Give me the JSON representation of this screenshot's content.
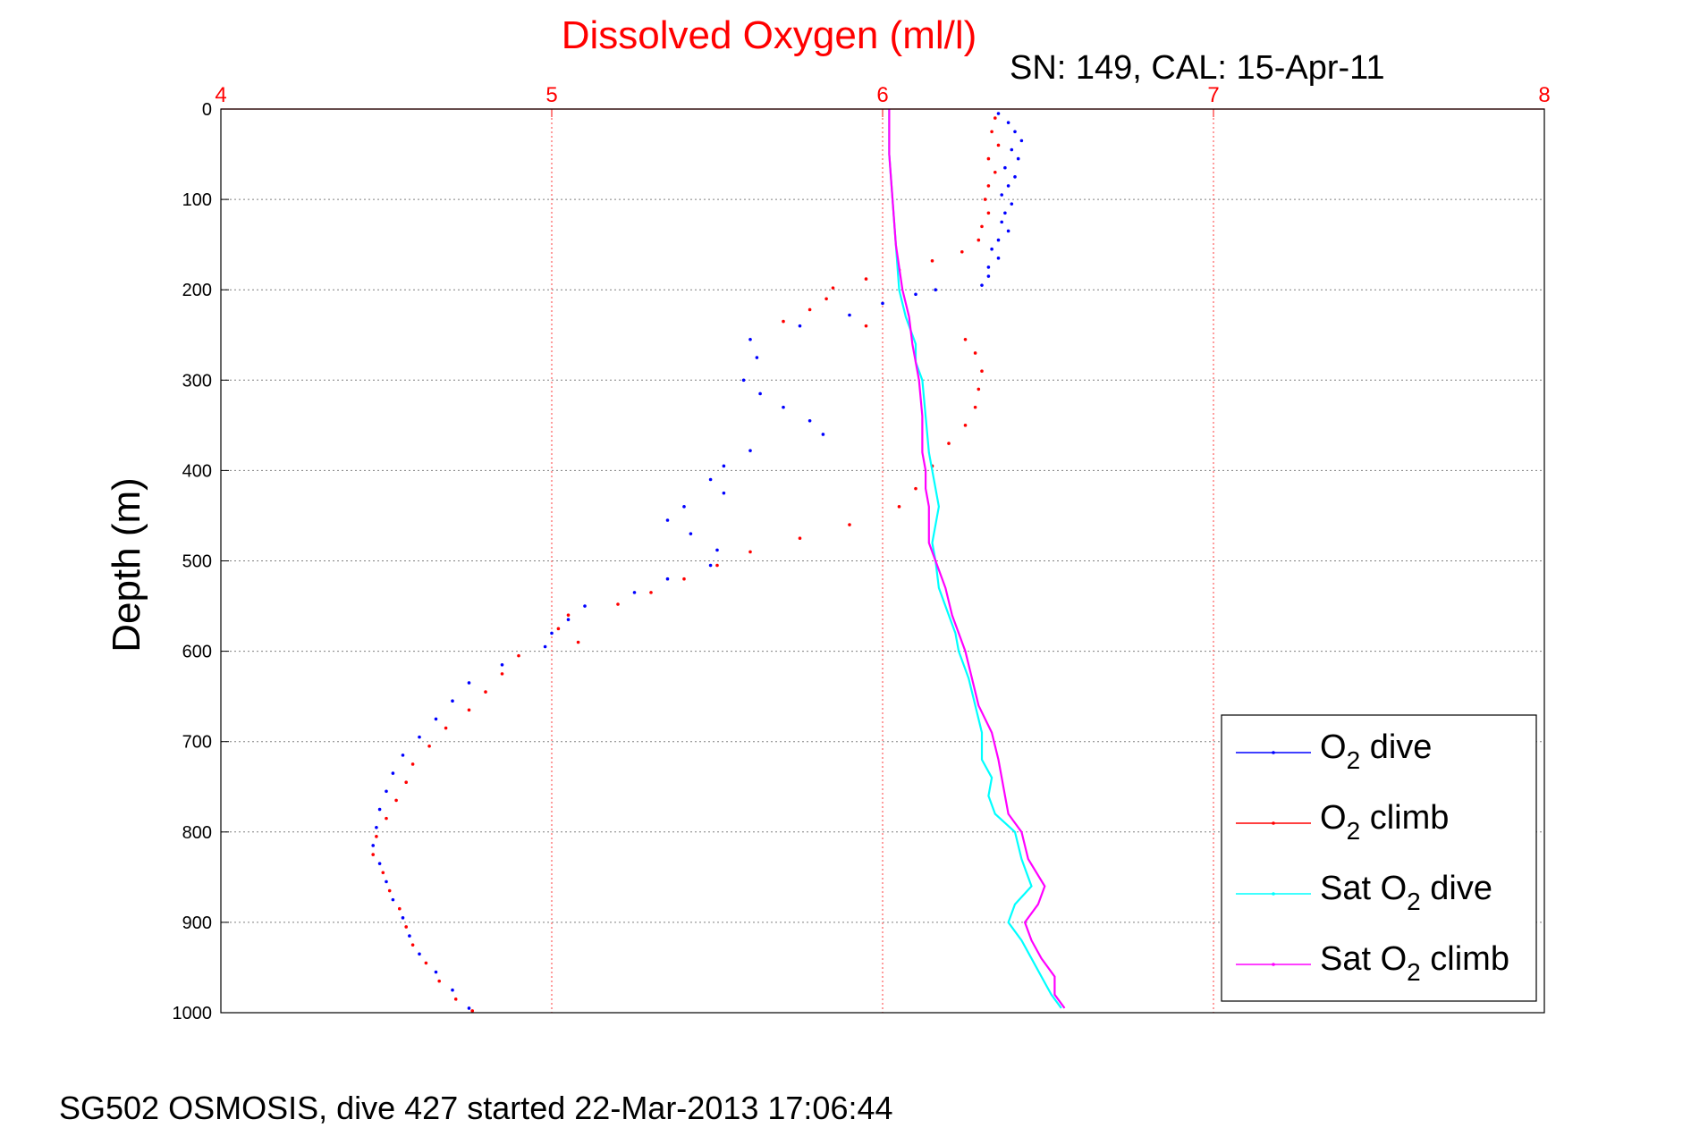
{
  "chart_data": {
    "type": "line",
    "title": "Dissolved Oxygen (ml/l)",
    "subtitle": "SN: 149, CAL: 15-Apr-11",
    "ylabel": "Depth (m)",
    "xlabel": "",
    "footer": "SG502 OSMOSIS, dive 427 started 22-Mar-2013 17:06:44",
    "xlim": [
      4,
      8
    ],
    "ylim": [
      0,
      1000
    ],
    "y_reversed": true,
    "x_axis_position": "top",
    "x_ticks": [
      "4",
      "5",
      "6",
      "7",
      "8"
    ],
    "y_ticks": [
      "0",
      "100",
      "200",
      "300",
      "400",
      "500",
      "600",
      "700",
      "800",
      "900",
      "1000"
    ],
    "grid": true,
    "legend_position": "bottom-right",
    "series": [
      {
        "name": "O2 dive",
        "legend_base": "O",
        "legend_sub": "2",
        "legend_rest": " dive",
        "color": "#0000ff",
        "style": "points",
        "points": [
          [
            6.35,
            5
          ],
          [
            6.38,
            15
          ],
          [
            6.4,
            25
          ],
          [
            6.42,
            35
          ],
          [
            6.39,
            45
          ],
          [
            6.41,
            55
          ],
          [
            6.37,
            65
          ],
          [
            6.4,
            75
          ],
          [
            6.38,
            85
          ],
          [
            6.36,
            95
          ],
          [
            6.39,
            105
          ],
          [
            6.37,
            115
          ],
          [
            6.36,
            125
          ],
          [
            6.38,
            135
          ],
          [
            6.35,
            145
          ],
          [
            6.33,
            155
          ],
          [
            6.35,
            165
          ],
          [
            6.32,
            175
          ],
          [
            6.32,
            185
          ],
          [
            6.3,
            195
          ],
          [
            6.16,
            200
          ],
          [
            6.1,
            205
          ],
          [
            6.0,
            215
          ],
          [
            5.9,
            228
          ],
          [
            5.75,
            240
          ],
          [
            5.6,
            255
          ],
          [
            5.62,
            275
          ],
          [
            5.58,
            300
          ],
          [
            5.63,
            315
          ],
          [
            5.7,
            330
          ],
          [
            5.78,
            345
          ],
          [
            5.82,
            360
          ],
          [
            5.6,
            378
          ],
          [
            5.52,
            395
          ],
          [
            5.48,
            410
          ],
          [
            5.52,
            425
          ],
          [
            5.4,
            440
          ],
          [
            5.35,
            455
          ],
          [
            5.42,
            470
          ],
          [
            5.5,
            488
          ],
          [
            5.48,
            505
          ],
          [
            5.35,
            520
          ],
          [
            5.25,
            535
          ],
          [
            5.1,
            550
          ],
          [
            5.05,
            565
          ],
          [
            5.0,
            580
          ],
          [
            4.98,
            595
          ],
          [
            4.85,
            615
          ],
          [
            4.75,
            635
          ],
          [
            4.7,
            655
          ],
          [
            4.65,
            675
          ],
          [
            4.6,
            695
          ],
          [
            4.55,
            715
          ],
          [
            4.52,
            735
          ],
          [
            4.5,
            755
          ],
          [
            4.48,
            775
          ],
          [
            4.47,
            795
          ],
          [
            4.46,
            815
          ],
          [
            4.48,
            835
          ],
          [
            4.5,
            855
          ],
          [
            4.52,
            875
          ],
          [
            4.55,
            895
          ],
          [
            4.57,
            915
          ],
          [
            4.6,
            935
          ],
          [
            4.65,
            955
          ],
          [
            4.7,
            975
          ],
          [
            4.75,
            995
          ]
        ]
      },
      {
        "name": "O2 climb",
        "legend_base": "O",
        "legend_sub": "2",
        "legend_rest": " climb",
        "color": "#ff0000",
        "style": "points",
        "points": [
          [
            6.34,
            10
          ],
          [
            6.33,
            25
          ],
          [
            6.35,
            40
          ],
          [
            6.32,
            55
          ],
          [
            6.34,
            70
          ],
          [
            6.32,
            85
          ],
          [
            6.31,
            100
          ],
          [
            6.32,
            115
          ],
          [
            6.3,
            130
          ],
          [
            6.29,
            145
          ],
          [
            6.24,
            158
          ],
          [
            6.15,
            168
          ],
          [
            6.05,
            178
          ],
          [
            5.95,
            188
          ],
          [
            5.85,
            198
          ],
          [
            5.83,
            210
          ],
          [
            5.78,
            222
          ],
          [
            5.7,
            235
          ],
          [
            5.95,
            240
          ],
          [
            6.25,
            255
          ],
          [
            6.28,
            270
          ],
          [
            6.3,
            290
          ],
          [
            6.29,
            310
          ],
          [
            6.28,
            330
          ],
          [
            6.25,
            350
          ],
          [
            6.2,
            370
          ],
          [
            6.15,
            395
          ],
          [
            6.1,
            420
          ],
          [
            6.05,
            440
          ],
          [
            5.9,
            460
          ],
          [
            5.75,
            475
          ],
          [
            5.6,
            490
          ],
          [
            5.5,
            505
          ],
          [
            5.4,
            520
          ],
          [
            5.3,
            535
          ],
          [
            5.2,
            548
          ],
          [
            5.05,
            560
          ],
          [
            5.02,
            575
          ],
          [
            5.08,
            590
          ],
          [
            4.9,
            605
          ],
          [
            4.85,
            625
          ],
          [
            4.8,
            645
          ],
          [
            4.75,
            665
          ],
          [
            4.68,
            685
          ],
          [
            4.63,
            705
          ],
          [
            4.58,
            725
          ],
          [
            4.56,
            745
          ],
          [
            4.53,
            765
          ],
          [
            4.5,
            785
          ],
          [
            4.47,
            805
          ],
          [
            4.46,
            825
          ],
          [
            4.49,
            845
          ],
          [
            4.51,
            865
          ],
          [
            4.54,
            885
          ],
          [
            4.56,
            905
          ],
          [
            4.58,
            925
          ],
          [
            4.62,
            945
          ],
          [
            4.66,
            965
          ],
          [
            4.71,
            985
          ],
          [
            4.76,
            998
          ]
        ]
      },
      {
        "name": "Sat O2 dive",
        "legend_base": "Sat O",
        "legend_sub": "2",
        "legend_rest": " dive",
        "color": "#00ffff",
        "style": "line",
        "points": [
          [
            6.02,
            0
          ],
          [
            6.02,
            50
          ],
          [
            6.03,
            100
          ],
          [
            6.04,
            150
          ],
          [
            6.05,
            200
          ],
          [
            6.07,
            230
          ],
          [
            6.1,
            260
          ],
          [
            6.1,
            280
          ],
          [
            6.12,
            300
          ],
          [
            6.13,
            340
          ],
          [
            6.14,
            380
          ],
          [
            6.15,
            400
          ],
          [
            6.16,
            420
          ],
          [
            6.17,
            440
          ],
          [
            6.16,
            460
          ],
          [
            6.15,
            480
          ],
          [
            6.16,
            500
          ],
          [
            6.17,
            530
          ],
          [
            6.2,
            560
          ],
          [
            6.22,
            580
          ],
          [
            6.23,
            600
          ],
          [
            6.26,
            630
          ],
          [
            6.28,
            660
          ],
          [
            6.3,
            690
          ],
          [
            6.3,
            720
          ],
          [
            6.33,
            740
          ],
          [
            6.32,
            760
          ],
          [
            6.34,
            780
          ],
          [
            6.4,
            800
          ],
          [
            6.42,
            830
          ],
          [
            6.45,
            860
          ],
          [
            6.4,
            880
          ],
          [
            6.38,
            900
          ],
          [
            6.42,
            920
          ],
          [
            6.45,
            940
          ],
          [
            6.48,
            960
          ],
          [
            6.51,
            980
          ],
          [
            6.54,
            995
          ]
        ]
      },
      {
        "name": "Sat O2 climb",
        "legend_base": "Sat O",
        "legend_sub": "2",
        "legend_rest": " climb",
        "color": "#ff00ff",
        "style": "line",
        "points": [
          [
            6.02,
            0
          ],
          [
            6.02,
            50
          ],
          [
            6.03,
            100
          ],
          [
            6.04,
            150
          ],
          [
            6.06,
            200
          ],
          [
            6.08,
            230
          ],
          [
            6.09,
            260
          ],
          [
            6.1,
            280
          ],
          [
            6.11,
            300
          ],
          [
            6.12,
            340
          ],
          [
            6.12,
            380
          ],
          [
            6.13,
            400
          ],
          [
            6.13,
            420
          ],
          [
            6.14,
            440
          ],
          [
            6.14,
            460
          ],
          [
            6.14,
            480
          ],
          [
            6.16,
            500
          ],
          [
            6.19,
            530
          ],
          [
            6.21,
            560
          ],
          [
            6.23,
            580
          ],
          [
            6.25,
            600
          ],
          [
            6.27,
            630
          ],
          [
            6.29,
            660
          ],
          [
            6.33,
            690
          ],
          [
            6.35,
            720
          ],
          [
            6.36,
            740
          ],
          [
            6.37,
            760
          ],
          [
            6.38,
            780
          ],
          [
            6.42,
            800
          ],
          [
            6.44,
            830
          ],
          [
            6.49,
            860
          ],
          [
            6.47,
            880
          ],
          [
            6.43,
            900
          ],
          [
            6.45,
            920
          ],
          [
            6.48,
            940
          ],
          [
            6.52,
            960
          ],
          [
            6.52,
            980
          ],
          [
            6.55,
            995
          ]
        ]
      }
    ]
  }
}
